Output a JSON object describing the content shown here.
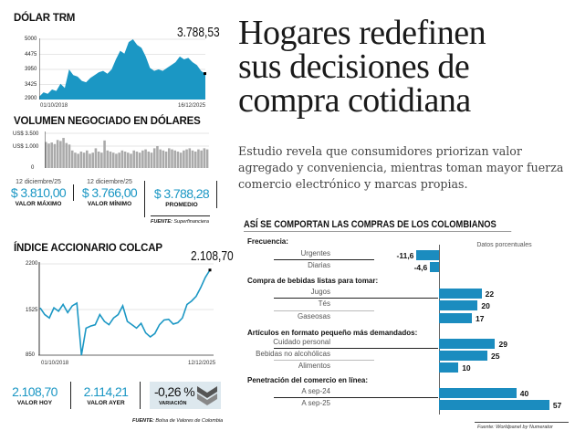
{
  "dolar": {
    "title": "DÓLAR TRM",
    "current": "3.788,53",
    "yticks": [
      "5000",
      "4475",
      "3950",
      "3425",
      "2900"
    ],
    "date_start": "01/10/2018",
    "date_end": "16/12/2025"
  },
  "volumen": {
    "title": "VOLUMEN NEGOCIADO EN DÓLARES",
    "yticks": [
      "US$ 3.500",
      "US$ 1.000",
      "0"
    ],
    "stats": [
      {
        "date": "12 diciembre/25",
        "value": "$ 3.810,00",
        "label": "VALOR MÁXIMO"
      },
      {
        "date": "12 diciembre/25",
        "value": "$ 3.766,00",
        "label": "VALOR MÍNIMO"
      },
      {
        "date": "",
        "value": "$ 3.788,28",
        "label": "PROMEDIO"
      }
    ],
    "source_label": "FUENTE:",
    "source": "Superfinanciera"
  },
  "colcap": {
    "title": "ÍNDICE ACCIONARIO COLCAP",
    "current": "2.108,70",
    "yticks": [
      "2200",
      "1525",
      "850"
    ],
    "date_start": "01/10/2018",
    "date_end": "12/12/2025",
    "stats": [
      {
        "value": "2.108,70",
        "label": "VALOR HOY"
      },
      {
        "value": "2.114,21",
        "label": "VALOR AYER"
      },
      {
        "value": "-0,26 %",
        "label": "VARIACIÓN"
      }
    ],
    "source_label": "FUENTE:",
    "source": "Bolsa de Valores de Colombia"
  },
  "article": {
    "headline": [
      "Hogares redefinen",
      "sus decisiones de",
      "compra cotidiana"
    ],
    "lede": "Estudio revela que consumidores priorizan valor agregado y conveniencia, mientras toman mayor fuerza comercio electrónico y marcas propias."
  },
  "colors": {
    "accent": "#1b97c4",
    "bar": "#1b8cbf",
    "volume": "#aaaaaa"
  },
  "chart_data": [
    {
      "type": "area",
      "title": "DÓLAR TRM",
      "ylim": [
        2900,
        5000
      ],
      "x_range": [
        "01/10/2018",
        "16/12/2025"
      ],
      "values": [
        3000,
        3150,
        3100,
        3250,
        3200,
        3450,
        3300,
        3950,
        3750,
        3700,
        3550,
        3500,
        3650,
        3750,
        3850,
        3900,
        3800,
        3950,
        4300,
        4600,
        4500,
        4900,
        5000,
        4800,
        4700,
        4400,
        4000,
        3900,
        3950,
        3900,
        4000,
        4100,
        4200,
        4400,
        4300,
        4350,
        4200,
        4100,
        3900,
        3788.53
      ]
    },
    {
      "type": "bar",
      "title": "VOLUMEN NEGOCIADO EN DÓLARES",
      "ylim": [
        0,
        3500
      ],
      "values": [
        1800,
        1500,
        1700,
        1400,
        2200,
        2000,
        2600,
        1600,
        1300,
        800,
        700,
        650,
        750,
        700,
        800,
        650,
        700,
        900,
        750,
        700,
        2100,
        800,
        750,
        700,
        650,
        700,
        800,
        750,
        700,
        650,
        800,
        750,
        700,
        800,
        850,
        750,
        700,
        900,
        1000,
        850,
        800,
        750,
        900,
        850,
        800,
        750,
        700,
        800,
        850,
        900,
        800,
        750,
        850,
        800,
        900,
        850
      ]
    },
    {
      "type": "line",
      "title": "ÍNDICE ACCIONARIO COLCAP",
      "ylim": [
        850,
        2200
      ],
      "x_range": [
        "01/10/2018",
        "12/12/2025"
      ],
      "values": [
        1550,
        1450,
        1400,
        1550,
        1500,
        1600,
        1480,
        1580,
        1620,
        850,
        1250,
        1280,
        1300,
        1450,
        1350,
        1300,
        1400,
        1450,
        1580,
        1350,
        1300,
        1250,
        1320,
        1180,
        1120,
        1170,
        1300,
        1370,
        1380,
        1310,
        1330,
        1400,
        1600,
        1650,
        1720,
        1850,
        2000,
        2108.7
      ]
    },
    {
      "type": "bar",
      "title": "ASÍ SE COMPORTAN LAS COMPRAS DE LOS COLOMBIANOS",
      "note": "Datos porcentuales",
      "source": "Fuente: Worldpanel by Numerator",
      "groups": [
        {
          "label": "Frecuencia:",
          "items": [
            {
              "label": "Urgentes",
              "value": -11.6,
              "text": "-11,6"
            },
            {
              "label": "Diarias",
              "value": -4.6,
              "text": "-4,6"
            }
          ]
        },
        {
          "label": "Compra de bebidas listas para tomar:",
          "items": [
            {
              "label": "Jugos",
              "value": 22,
              "text": "22"
            },
            {
              "label": "Tés",
              "value": 20,
              "text": "20"
            },
            {
              "label": "Gaseosas",
              "value": 17,
              "text": "17"
            }
          ]
        },
        {
          "label": "Artículos en formato pequeño más demandados:",
          "items": [
            {
              "label": "Cuidado personal",
              "value": 29,
              "text": "29"
            },
            {
              "label": "Bebidas no alcohólicas",
              "value": 25,
              "text": "25"
            },
            {
              "label": "Alimentos",
              "value": 10,
              "text": "10"
            }
          ]
        },
        {
          "label": "Penetración del comercio en línea:",
          "items": [
            {
              "label": "A sep-24",
              "value": 40,
              "text": "40"
            },
            {
              "label": "A sep-25",
              "value": 57,
              "text": "57"
            }
          ]
        }
      ]
    }
  ]
}
